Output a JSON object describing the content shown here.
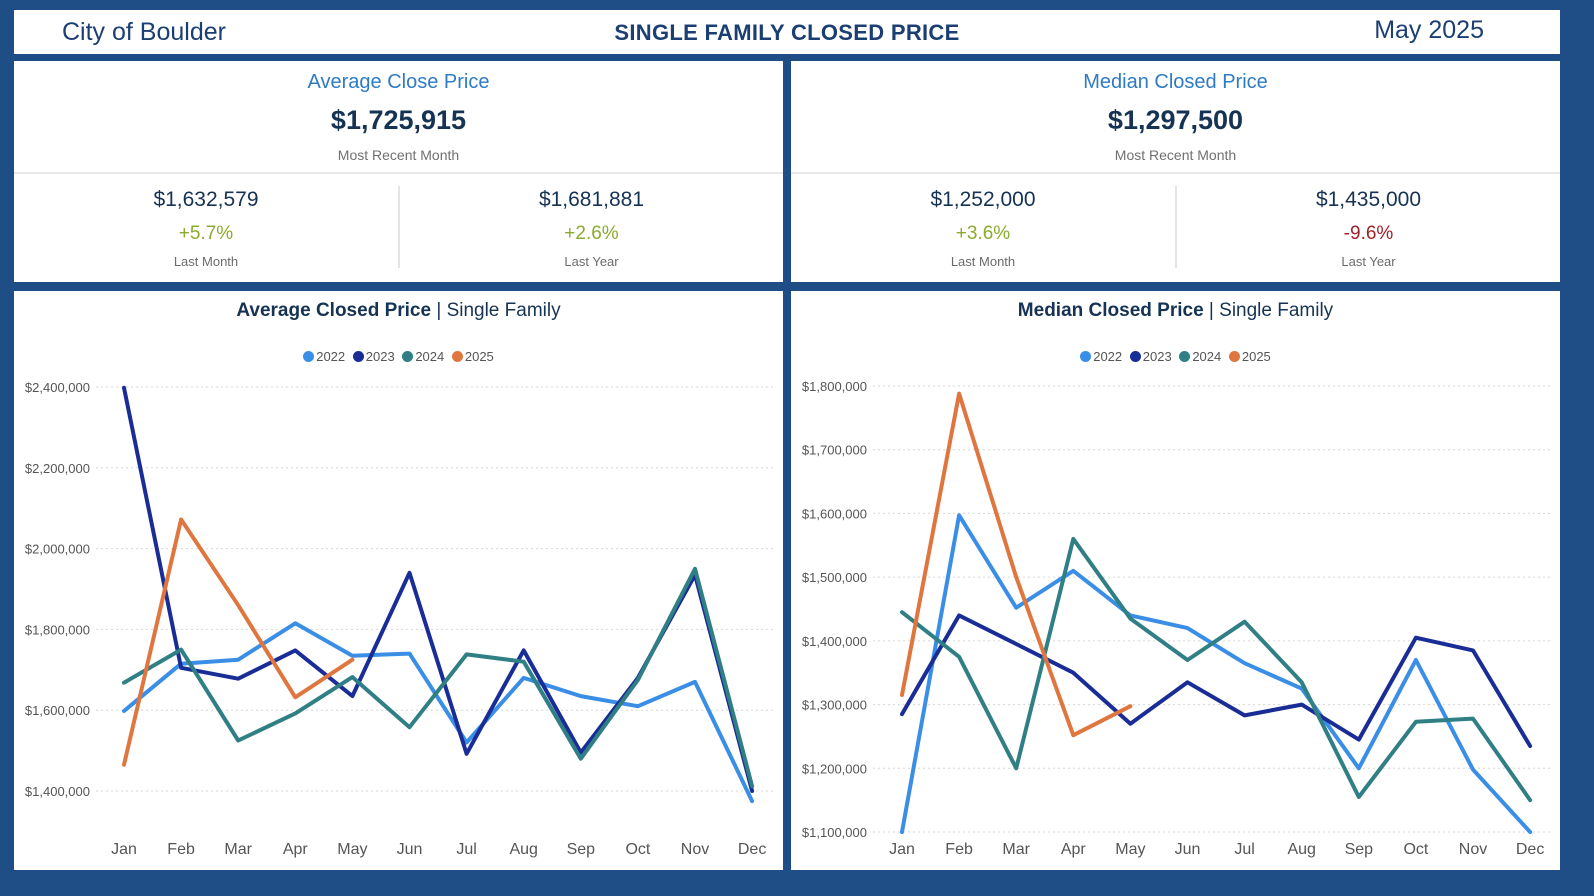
{
  "header": {
    "city": "City of Boulder",
    "title": "SINGLE FAMILY CLOSED PRICE",
    "month": "May 2025"
  },
  "kpi_left": {
    "title": "Average Close Price",
    "value": "$1,725,915",
    "subtitle": "Most Recent Month",
    "last_month": {
      "value": "$1,632,579",
      "change": "+5.7%",
      "label": "Last Month",
      "direction": "up"
    },
    "last_year": {
      "value": "$1,681,881",
      "change": "+2.6%",
      "label": "Last Year",
      "direction": "up"
    }
  },
  "kpi_right": {
    "title": "Median Closed Price",
    "value": "$1,297,500",
    "subtitle": "Most Recent Month",
    "last_month": {
      "value": "$1,252,000",
      "change": "+3.6%",
      "label": "Last Month",
      "direction": "up"
    },
    "last_year": {
      "value": "$1,435,000",
      "change": "-9.6%",
      "label": "Last Year",
      "direction": "down"
    }
  },
  "colors": {
    "positive": "#8aab2c",
    "negative": "#a0202a"
  },
  "chart_data": [
    {
      "type": "line",
      "title_bold": "Average Closed Price",
      "title_sep": "|",
      "title_rest": "Single Family",
      "categories": [
        "Jan",
        "Feb",
        "Mar",
        "Apr",
        "May",
        "Jun",
        "Jul",
        "Aug",
        "Sep",
        "Oct",
        "Nov",
        "Dec"
      ],
      "y_ticks": [
        {
          "value": 1400000,
          "label": "$1,400,000"
        },
        {
          "value": 1600000,
          "label": "$1,600,000"
        },
        {
          "value": 1800000,
          "label": "$1,800,000"
        },
        {
          "value": 2000000,
          "label": "$2,000,000"
        },
        {
          "value": 2200000,
          "label": "$2,200,000"
        },
        {
          "value": 2400000,
          "label": "$2,400,000"
        }
      ],
      "ylim": [
        1400000,
        2400000
      ],
      "grid": true,
      "legend_position": "top-center",
      "series": [
        {
          "name": "2022",
          "color": "#3a8ee6",
          "values": [
            1598000,
            1715000,
            1725000,
            1815000,
            1735000,
            1740000,
            1520000,
            1680000,
            1635000,
            1610000,
            1670000,
            1375000
          ]
        },
        {
          "name": "2023",
          "color": "#1a2d96",
          "values": [
            2398000,
            1705000,
            1678000,
            1748000,
            1635000,
            1940000,
            1492000,
            1748000,
            1495000,
            1680000,
            1935000,
            1400000
          ]
        },
        {
          "name": "2024",
          "color": "#2f7f84",
          "values": [
            1668000,
            1750000,
            1525000,
            1592000,
            1682000,
            1558000,
            1738000,
            1720000,
            1480000,
            1675000,
            1950000,
            1412000
          ]
        },
        {
          "name": "2025",
          "color": "#e0763f",
          "values": [
            1465000,
            2072000,
            1860000,
            1632000,
            1725000,
            null,
            null,
            null,
            null,
            null,
            null,
            null
          ]
        }
      ]
    },
    {
      "type": "line",
      "title_bold": "Median Closed Price",
      "title_sep": "|",
      "title_rest": "Single Family",
      "categories": [
        "Jan",
        "Feb",
        "Mar",
        "Apr",
        "May",
        "Jun",
        "Jul",
        "Aug",
        "Sep",
        "Oct",
        "Nov",
        "Dec"
      ],
      "y_ticks": [
        {
          "value": 1100000,
          "label": "$1,100,000"
        },
        {
          "value": 1200000,
          "label": "$1,200,000"
        },
        {
          "value": 1300000,
          "label": "$1,300,000"
        },
        {
          "value": 1400000,
          "label": "$1,400,000"
        },
        {
          "value": 1500000,
          "label": "$1,500,000"
        },
        {
          "value": 1600000,
          "label": "$1,600,000"
        },
        {
          "value": 1700000,
          "label": "$1,700,000"
        },
        {
          "value": 1800000,
          "label": "$1,800,000"
        }
      ],
      "ylim": [
        1100000,
        1800000
      ],
      "grid": true,
      "legend_position": "top-center",
      "series": [
        {
          "name": "2022",
          "color": "#3a8ee6",
          "values": [
            1100000,
            1597000,
            1452000,
            1510000,
            1440000,
            1420000,
            1365000,
            1325000,
            1200000,
            1370000,
            1198000,
            1100000
          ]
        },
        {
          "name": "2023",
          "color": "#1a2d96",
          "values": [
            1285000,
            1440000,
            1395000,
            1350000,
            1270000,
            1335000,
            1283000,
            1300000,
            1245000,
            1405000,
            1385000,
            1235000
          ]
        },
        {
          "name": "2024",
          "color": "#2f7f84",
          "values": [
            1445000,
            1375000,
            1200000,
            1560000,
            1435000,
            1370000,
            1430000,
            1335000,
            1155000,
            1273000,
            1278000,
            1150000
          ]
        },
        {
          "name": "2025",
          "color": "#e0763f",
          "values": [
            1315000,
            1788000,
            1500000,
            1252000,
            1297500,
            null,
            null,
            null,
            null,
            null,
            null,
            null
          ]
        }
      ]
    }
  ]
}
